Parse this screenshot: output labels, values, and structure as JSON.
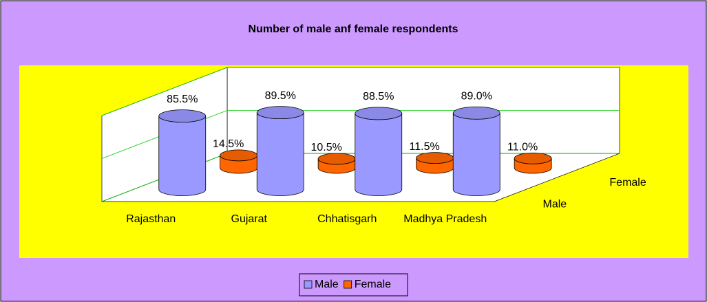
{
  "chart_data": {
    "type": "bar3d",
    "title": "Number of male anf female respondents",
    "categories": [
      "Rajasthan",
      "Gujarat",
      "Chhatisgarh",
      "Madhya Pradesh"
    ],
    "series": [
      {
        "name": "Male",
        "color": "#9999ff",
        "values": [
          85.5,
          89.5,
          88.5,
          89.0
        ],
        "value_labels": [
          "85.5%",
          "89.5%",
          "88.5%",
          "89.0%"
        ]
      },
      {
        "name": "Female",
        "color": "#ff6600",
        "values": [
          14.5,
          10.5,
          11.5,
          11.0
        ],
        "value_labels": [
          "14.5%",
          "10.5%",
          "11.5%",
          "11.0%"
        ]
      }
    ],
    "ylim": [
      0,
      100
    ],
    "yticks": [
      0,
      50,
      100
    ],
    "grid": true,
    "legend": "bottom"
  }
}
